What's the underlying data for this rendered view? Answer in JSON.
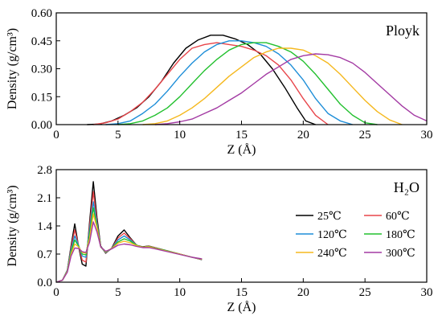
{
  "chart_data": [
    {
      "type": "line",
      "panel_label": "Ployk",
      "xlabel": "Z (Å)",
      "ylabel": "Density (g/cm³)",
      "xlim": [
        0,
        30
      ],
      "ylim": [
        0,
        0.6
      ],
      "xticks": [
        0,
        5,
        10,
        15,
        20,
        25,
        30
      ],
      "xtick_labels": [
        "0",
        "5",
        "10",
        "15",
        "20",
        "25",
        "30"
      ],
      "yticks": [
        0,
        0.15,
        0.3,
        0.45,
        0.6
      ],
      "ytick_labels": [
        "0.00",
        "0.15",
        "0.30",
        "0.45",
        "0.60"
      ],
      "series": [
        {
          "key": "25C",
          "color": "#000000",
          "x": [
            2.5,
            3.5,
            4.5,
            5.5,
            6.5,
            7.5,
            8.5,
            9.5,
            10.5,
            11.5,
            12.5,
            13.5,
            14.5,
            15.5,
            16.5,
            17.5,
            18.5,
            19.5,
            20.2,
            21
          ],
          "y": [
            0,
            0.003,
            0.02,
            0.05,
            0.09,
            0.15,
            0.23,
            0.33,
            0.41,
            0.455,
            0.48,
            0.48,
            0.46,
            0.43,
            0.38,
            0.3,
            0.2,
            0.09,
            0.02,
            0
          ]
        },
        {
          "key": "60C",
          "color": "#e8454a",
          "x": [
            3,
            4,
            5,
            6,
            7,
            8,
            9,
            10,
            11,
            12,
            13,
            14,
            15,
            16,
            17,
            18,
            19,
            20,
            21,
            22
          ],
          "y": [
            0,
            0.01,
            0.03,
            0.07,
            0.12,
            0.19,
            0.27,
            0.35,
            0.41,
            0.43,
            0.44,
            0.43,
            0.42,
            0.4,
            0.37,
            0.32,
            0.24,
            0.14,
            0.05,
            0
          ]
        },
        {
          "key": "120C",
          "color": "#1e8ed8",
          "x": [
            4,
            5,
            6,
            7,
            8,
            9,
            10,
            11,
            12,
            13,
            14,
            15,
            16,
            17,
            18,
            19,
            20,
            21,
            22,
            23,
            24
          ],
          "y": [
            0,
            0.005,
            0.02,
            0.06,
            0.11,
            0.18,
            0.26,
            0.33,
            0.39,
            0.43,
            0.45,
            0.45,
            0.44,
            0.42,
            0.38,
            0.32,
            0.24,
            0.14,
            0.06,
            0.02,
            0
          ]
        },
        {
          "key": "180C",
          "color": "#22c02e",
          "x": [
            5,
            6,
            7,
            8,
            9,
            10,
            11,
            12,
            13,
            14,
            15,
            16,
            17,
            18,
            19,
            20,
            21,
            22,
            23,
            24,
            25,
            26
          ],
          "y": [
            0,
            0.005,
            0.02,
            0.05,
            0.09,
            0.15,
            0.22,
            0.29,
            0.35,
            0.4,
            0.43,
            0.44,
            0.44,
            0.42,
            0.39,
            0.34,
            0.27,
            0.19,
            0.11,
            0.05,
            0.01,
            0
          ]
        },
        {
          "key": "240C",
          "color": "#f5b81e",
          "x": [
            7,
            8,
            9,
            10,
            11,
            12,
            13,
            14,
            15,
            16,
            17,
            18,
            19,
            20,
            21,
            22,
            23,
            24,
            25,
            26,
            27,
            28
          ],
          "y": [
            0,
            0.005,
            0.02,
            0.05,
            0.09,
            0.14,
            0.2,
            0.26,
            0.31,
            0.36,
            0.39,
            0.41,
            0.41,
            0.4,
            0.37,
            0.33,
            0.27,
            0.2,
            0.13,
            0.07,
            0.025,
            0
          ]
        },
        {
          "key": "300C",
          "color": "#a33aa3",
          "x": [
            8,
            9,
            10,
            11,
            12,
            13,
            14,
            15,
            16,
            17,
            18,
            19,
            20,
            21,
            22,
            23,
            24,
            25,
            26,
            27,
            28,
            29,
            30
          ],
          "y": [
            0,
            0.005,
            0.015,
            0.03,
            0.06,
            0.09,
            0.13,
            0.17,
            0.22,
            0.27,
            0.31,
            0.35,
            0.37,
            0.38,
            0.375,
            0.36,
            0.33,
            0.28,
            0.22,
            0.16,
            0.1,
            0.05,
            0.02
          ]
        }
      ]
    },
    {
      "type": "line",
      "panel_label": "H₂O",
      "xlabel": "Z (Å)",
      "ylabel": "Density (g/cm³)",
      "xlim": [
        0,
        30
      ],
      "ylim": [
        0,
        2.8
      ],
      "xticks": [
        0,
        5,
        10,
        15,
        20,
        25,
        30
      ],
      "xtick_labels": [
        "0",
        "5",
        "10",
        "15",
        "20",
        "25",
        "30"
      ],
      "yticks": [
        0,
        0.7,
        1.4,
        2.1,
        2.8
      ],
      "ytick_labels": [
        "0.0",
        "0.7",
        "1.4",
        "2.1",
        "2.8"
      ],
      "legend": {
        "position": "right"
      },
      "series": [
        {
          "key": "25C",
          "name": "25℃",
          "color": "#000000",
          "x": [
            0,
            0.5,
            0.9,
            1.2,
            1.5,
            1.8,
            2.1,
            2.4,
            2.7,
            3.0,
            3.3,
            3.6,
            4.0,
            4.5,
            5.0,
            5.5,
            6.0,
            6.5,
            7.0,
            7.5,
            8,
            9,
            10,
            11,
            11.8
          ],
          "y": [
            0,
            0.05,
            0.3,
            0.9,
            1.45,
            0.9,
            0.45,
            0.4,
            1.5,
            2.5,
            1.6,
            0.9,
            0.72,
            0.85,
            1.15,
            1.3,
            1.1,
            0.92,
            0.88,
            0.9,
            0.86,
            0.78,
            0.7,
            0.62,
            0.56
          ]
        },
        {
          "key": "60C",
          "name": "60℃",
          "color": "#e8454a",
          "x": [
            0,
            0.5,
            0.9,
            1.2,
            1.5,
            1.8,
            2.1,
            2.4,
            2.7,
            3.0,
            3.3,
            3.6,
            4.0,
            4.5,
            5.0,
            5.5,
            6.0,
            6.5,
            7.0,
            7.5,
            8,
            9,
            10,
            11,
            11.8
          ],
          "y": [
            0,
            0.05,
            0.3,
            0.85,
            1.3,
            0.92,
            0.55,
            0.5,
            1.4,
            2.25,
            1.5,
            0.88,
            0.73,
            0.84,
            1.1,
            1.22,
            1.08,
            0.92,
            0.87,
            0.9,
            0.86,
            0.78,
            0.7,
            0.62,
            0.57
          ]
        },
        {
          "key": "120C",
          "name": "120℃",
          "color": "#1e8ed8",
          "x": [
            0,
            0.5,
            0.9,
            1.2,
            1.5,
            1.8,
            2.1,
            2.4,
            2.7,
            3.0,
            3.3,
            3.6,
            4.0,
            4.5,
            5.0,
            5.5,
            6.0,
            6.5,
            7.0,
            7.5,
            8,
            9,
            10,
            11,
            11.8
          ],
          "y": [
            0,
            0.05,
            0.3,
            0.8,
            1.15,
            0.92,
            0.65,
            0.62,
            1.3,
            2.0,
            1.45,
            0.88,
            0.74,
            0.84,
            1.05,
            1.15,
            1.05,
            0.92,
            0.87,
            0.89,
            0.85,
            0.78,
            0.7,
            0.62,
            0.57
          ]
        },
        {
          "key": "180C",
          "name": "180℃",
          "color": "#22c02e",
          "x": [
            0,
            0.5,
            0.9,
            1.2,
            1.5,
            1.8,
            2.1,
            2.4,
            2.7,
            3.0,
            3.3,
            3.6,
            4.0,
            4.5,
            5.0,
            5.5,
            6.0,
            6.5,
            7.0,
            7.5,
            8,
            9,
            10,
            11,
            11.8
          ],
          "y": [
            0,
            0.05,
            0.28,
            0.75,
            1.05,
            0.9,
            0.7,
            0.68,
            1.2,
            1.85,
            1.4,
            0.88,
            0.75,
            0.84,
            1.0,
            1.08,
            1.02,
            0.92,
            0.87,
            0.89,
            0.85,
            0.78,
            0.7,
            0.62,
            0.57
          ]
        },
        {
          "key": "240C",
          "name": "240℃",
          "color": "#f5b81e",
          "x": [
            0,
            0.5,
            0.9,
            1.2,
            1.5,
            1.8,
            2.1,
            2.4,
            2.7,
            3.0,
            3.3,
            3.6,
            4.0,
            4.5,
            5.0,
            5.5,
            6.0,
            6.5,
            7.0,
            7.5,
            8,
            9,
            10,
            11,
            11.8
          ],
          "y": [
            0,
            0.05,
            0.27,
            0.7,
            0.95,
            0.88,
            0.74,
            0.72,
            1.1,
            1.7,
            1.35,
            0.88,
            0.76,
            0.84,
            0.97,
            1.02,
            0.98,
            0.91,
            0.87,
            0.88,
            0.84,
            0.77,
            0.7,
            0.62,
            0.57
          ]
        },
        {
          "key": "300C",
          "name": "300℃",
          "color": "#a33aa3",
          "x": [
            0,
            0.5,
            0.9,
            1.2,
            1.5,
            1.8,
            2.1,
            2.4,
            2.7,
            3.0,
            3.3,
            3.6,
            4.0,
            4.5,
            5.0,
            5.5,
            6.0,
            6.5,
            7.0,
            7.5,
            8,
            9,
            10,
            11,
            11.8
          ],
          "y": [
            0,
            0.05,
            0.25,
            0.65,
            0.85,
            0.84,
            0.76,
            0.74,
            1.0,
            1.5,
            1.25,
            0.88,
            0.77,
            0.83,
            0.92,
            0.95,
            0.93,
            0.89,
            0.86,
            0.86,
            0.83,
            0.76,
            0.69,
            0.62,
            0.58
          ]
        }
      ]
    }
  ]
}
